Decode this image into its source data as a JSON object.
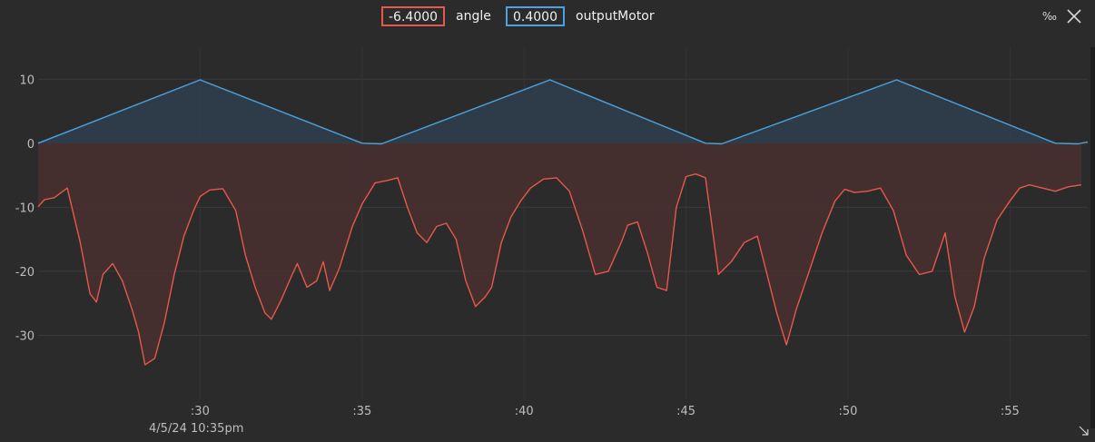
{
  "legend": [
    {
      "value": "-6.4000",
      "name": "angle",
      "color": "#e5594a"
    },
    {
      "value": "0.4000",
      "name": "outputMotor",
      "color": "#4aa3e0"
    }
  ],
  "controls": {
    "permille_label": "‰",
    "close_icon": "close-icon",
    "resize_icon": "resize-grip-icon"
  },
  "date_label": "4/5/24 10:35pm",
  "chart_data": {
    "type": "line",
    "ylim": [
      -40,
      15
    ],
    "xlim": [
      25,
      57.4
    ],
    "yticks": [
      10,
      0,
      -10,
      -20,
      -30
    ],
    "ytick_labels": [
      "10",
      "0",
      "-10",
      "-20",
      "-30"
    ],
    "xticks": [
      30,
      35,
      40,
      45,
      50,
      55
    ],
    "xtick_labels": [
      ":30",
      ":35",
      ":40",
      ":45",
      ":50",
      ":55"
    ],
    "grid": true,
    "series": [
      {
        "name": "outputMotor",
        "color": "#4aa3e0",
        "fill": "#2f4050",
        "x": [
          25.0,
          30.0,
          35.0,
          35.6,
          40.8,
          45.6,
          46.1,
          51.5,
          56.4,
          57.1,
          57.4
        ],
        "y": [
          0.0,
          9.9,
          0.0,
          -0.1,
          9.9,
          0.0,
          -0.1,
          9.9,
          0.0,
          -0.1,
          0.2
        ]
      },
      {
        "name": "angle",
        "color": "#e5594a",
        "fill": "#4a2f2f",
        "x": [
          25.0,
          25.2,
          25.5,
          25.9,
          26.3,
          26.6,
          26.8,
          27.0,
          27.3,
          27.6,
          27.9,
          28.1,
          28.3,
          28.6,
          28.9,
          29.2,
          29.5,
          29.8,
          30.0,
          30.3,
          30.7,
          31.1,
          31.4,
          31.7,
          32.0,
          32.2,
          32.5,
          32.8,
          33.0,
          33.3,
          33.6,
          33.8,
          34.0,
          34.3,
          34.7,
          35.0,
          35.4,
          35.8,
          36.1,
          36.4,
          36.7,
          37.0,
          37.3,
          37.6,
          37.9,
          38.2,
          38.5,
          38.8,
          39.0,
          39.3,
          39.6,
          39.9,
          40.2,
          40.6,
          41.0,
          41.4,
          41.8,
          42.2,
          42.6,
          43.0,
          43.2,
          43.5,
          43.8,
          44.1,
          44.4,
          44.7,
          45.0,
          45.3,
          45.6,
          46.0,
          46.4,
          46.8,
          47.2,
          47.5,
          47.8,
          48.1,
          48.4,
          48.8,
          49.2,
          49.6,
          49.9,
          50.2,
          50.6,
          51.0,
          51.4,
          51.8,
          52.2,
          52.6,
          53.0,
          53.3,
          53.6,
          53.9,
          54.2,
          54.6,
          55.0,
          55.3,
          55.6,
          56.0,
          56.4,
          56.8,
          57.2
        ],
        "y": [
          -9.9,
          -8.8,
          -8.5,
          -7.0,
          -15.5,
          -23.5,
          -24.8,
          -20.5,
          -18.8,
          -21.5,
          -26.0,
          -29.5,
          -34.6,
          -33.6,
          -28.0,
          -20.5,
          -14.5,
          -10.5,
          -8.3,
          -7.3,
          -7.1,
          -10.5,
          -17.5,
          -22.5,
          -26.5,
          -27.5,
          -24.5,
          -21.0,
          -18.8,
          -22.5,
          -21.5,
          -18.5,
          -23.0,
          -19.5,
          -13.0,
          -9.5,
          -6.2,
          -5.8,
          -5.4,
          -10.0,
          -14.0,
          -15.5,
          -13.0,
          -12.5,
          -15.0,
          -21.5,
          -25.5,
          -24.0,
          -22.5,
          -15.5,
          -11.5,
          -9.0,
          -7.0,
          -5.6,
          -5.4,
          -7.5,
          -13.5,
          -20.5,
          -20.0,
          -15.5,
          -12.8,
          -12.3,
          -17.0,
          -22.5,
          -23.0,
          -10.0,
          -5.2,
          -4.8,
          -5.4,
          -20.5,
          -18.5,
          -15.5,
          -14.5,
          -20.5,
          -26.5,
          -31.5,
          -26.0,
          -20.0,
          -14.0,
          -9.0,
          -7.2,
          -7.7,
          -7.5,
          -7.0,
          -10.5,
          -17.5,
          -20.5,
          -20.0,
          -14.0,
          -24.0,
          -29.5,
          -25.5,
          -18.0,
          -12.0,
          -9.0,
          -7.0,
          -6.5,
          -7.0,
          -7.5,
          -6.8,
          -6.5
        ]
      }
    ]
  }
}
